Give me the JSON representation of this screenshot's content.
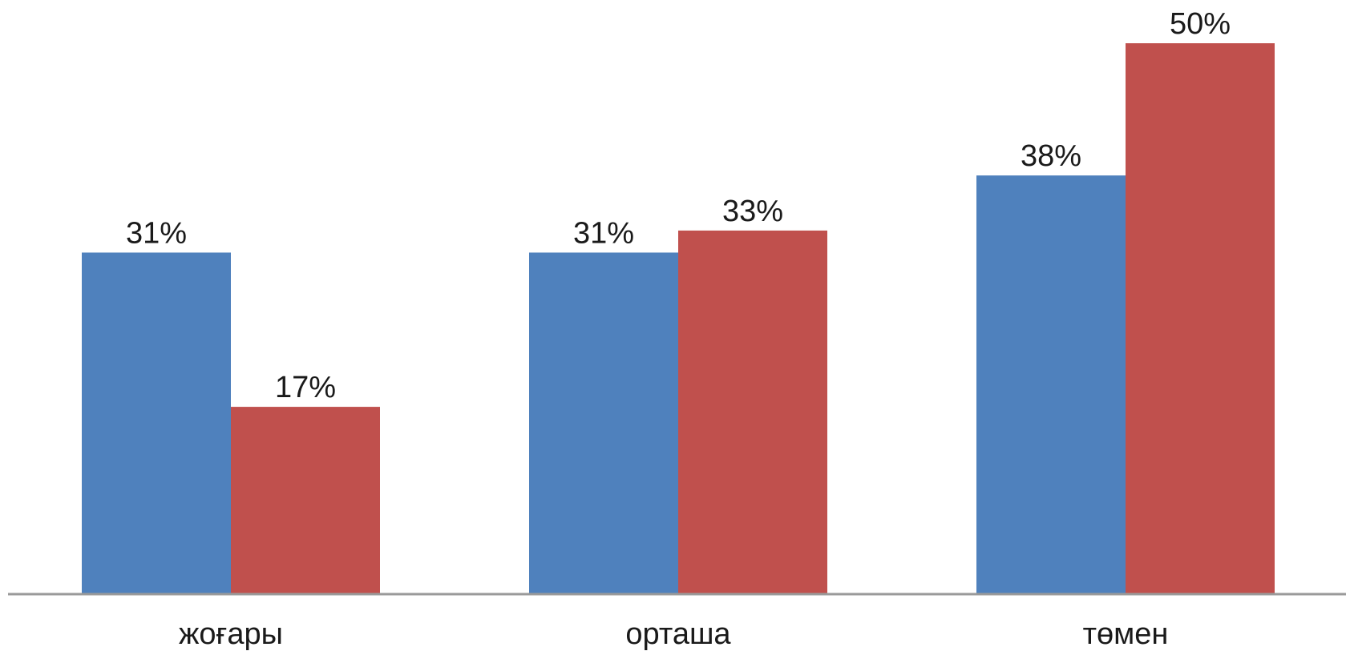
{
  "chart_data": {
    "type": "bar",
    "categories": [
      "жоғары",
      "орташа",
      "төмен"
    ],
    "series": [
      {
        "values": [
          31,
          31,
          38
        ],
        "labels": [
          "31%",
          "31%",
          "38%"
        ],
        "color": "#4f81bd"
      },
      {
        "values": [
          17,
          33,
          50
        ],
        "labels": [
          "17%",
          "33%",
          "50%"
        ],
        "color": "#c0504d"
      }
    ],
    "ylim": [
      0,
      50
    ],
    "grid": false,
    "legend": "none"
  }
}
